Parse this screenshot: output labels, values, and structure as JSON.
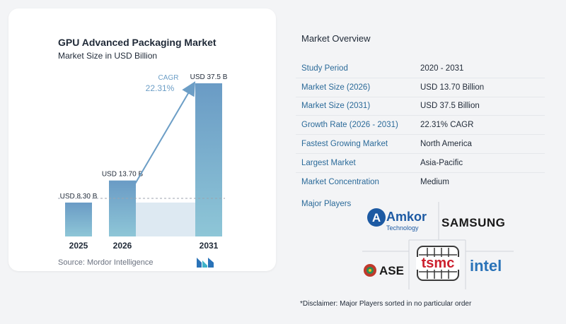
{
  "chart": {
    "title": "GPU Advanced Packaging Market",
    "subtitle": "Market Size in USD Billion",
    "source": "Source: Mordor Intelligence",
    "cagr_label": "CAGR",
    "cagr_value": "22.31%"
  },
  "chart_data": {
    "type": "bar",
    "title": "GPU Advanced Packaging Market",
    "subtitle": "Market Size in USD Billion",
    "categories": [
      "2025",
      "2026",
      "2031"
    ],
    "values": [
      8.3,
      13.7,
      37.5
    ],
    "data_labels": [
      "USD 8.30 B",
      "USD 13.70 B",
      "USD 37.5 B"
    ],
    "annotation": "CAGR 22.31%",
    "colors": {
      "bar_top": "#6c9ec6",
      "bar_bottom": "#8fc4d8",
      "band": "#dde9f2",
      "arrow": "#6c9ec6"
    },
    "grid": false
  },
  "overview": {
    "title": "Market Overview",
    "rows": [
      {
        "label": "Study Period",
        "value": "2020 - 2031"
      },
      {
        "label": "Market Size (2026)",
        "value": "USD 13.70 Billion"
      },
      {
        "label": "Market Size (2031)",
        "value": "USD 37.5 Billion"
      },
      {
        "label": "Growth Rate (2026 - 2031)",
        "value": "22.31% CAGR"
      },
      {
        "label": "Fastest Growing Market",
        "value": "North America"
      },
      {
        "label": "Largest Market",
        "value": "Asia-Pacific"
      },
      {
        "label": "Market Concentration",
        "value": "Medium"
      }
    ],
    "players_label": "Major Players",
    "players": {
      "amkor": "Amkor",
      "amkor_sub": "Technology",
      "samsung": "SAMSUNG",
      "ase": "ASE",
      "tsmc": "tsmc",
      "intel": "intel"
    },
    "disclaimer": "*Disclaimer: Major Players sorted in no particular order"
  }
}
